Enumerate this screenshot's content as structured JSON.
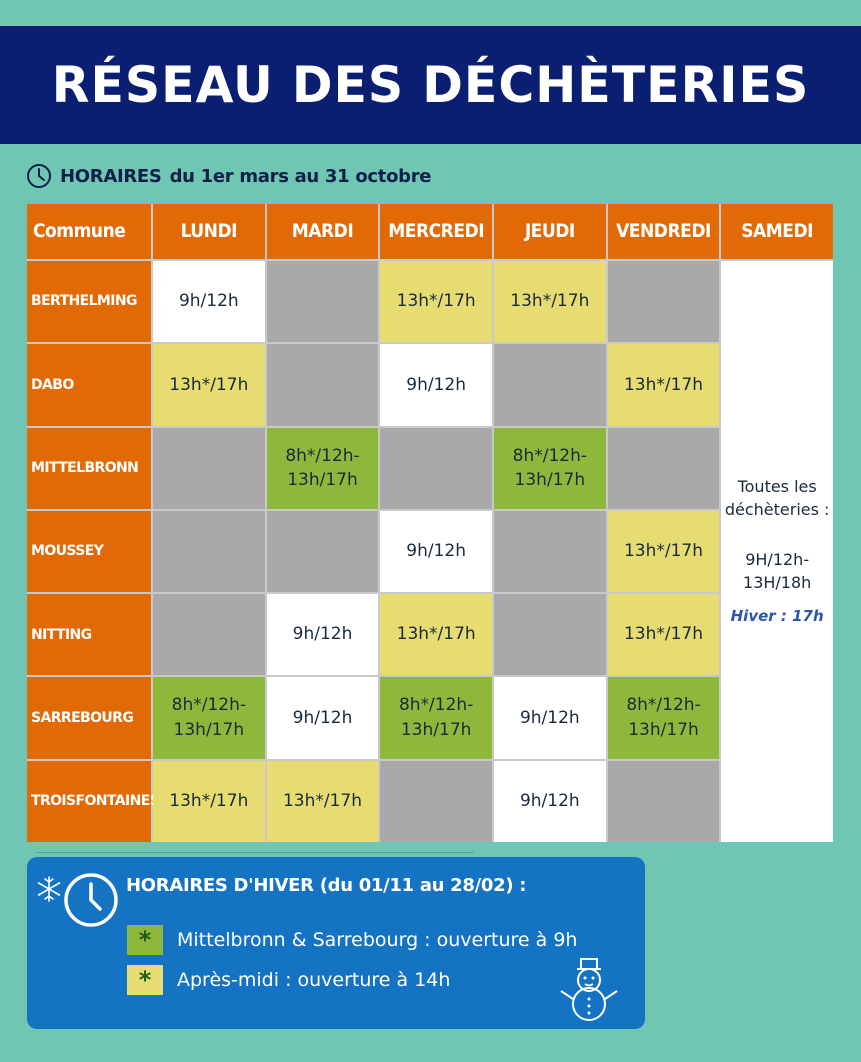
{
  "banner": {
    "title": "RÉSEAU DES DÉCHÈTERIES"
  },
  "subhead": {
    "strong": "HORAIRES",
    "rest": "du 1er mars au 31 octobre"
  },
  "table": {
    "headers": [
      "Commune",
      "LUNDI",
      "MARDI",
      "MERCREDI",
      "JEUDI",
      "VENDREDI",
      "SAMEDI"
    ],
    "rows": [
      {
        "commune": "BERTHELMING",
        "cells": [
          {
            "t": "9h/12h",
            "c": "white"
          },
          {
            "t": "",
            "c": "grey"
          },
          {
            "t": "13h*/17h",
            "c": "yellow"
          },
          {
            "t": "13h*/17h",
            "c": "yellow"
          },
          {
            "t": "",
            "c": "grey"
          }
        ]
      },
      {
        "commune": "DABO",
        "cells": [
          {
            "t": "13h*/17h",
            "c": "yellow"
          },
          {
            "t": "",
            "c": "grey"
          },
          {
            "t": "9h/12h",
            "c": "white"
          },
          {
            "t": "",
            "c": "grey"
          },
          {
            "t": "13h*/17h",
            "c": "yellow"
          }
        ]
      },
      {
        "commune": "MITTELBRONN",
        "cells": [
          {
            "t": "",
            "c": "grey"
          },
          {
            "t": "8h*/12h-",
            "t2": "13h/17h",
            "c": "green"
          },
          {
            "t": "",
            "c": "grey"
          },
          {
            "t": "8h*/12h-",
            "t2": "13h/17h",
            "c": "green"
          },
          {
            "t": "",
            "c": "grey"
          }
        ]
      },
      {
        "commune": "MOUSSEY",
        "cells": [
          {
            "t": "",
            "c": "grey"
          },
          {
            "t": "",
            "c": "grey"
          },
          {
            "t": "9h/12h",
            "c": "white"
          },
          {
            "t": "",
            "c": "grey"
          },
          {
            "t": "13h*/17h",
            "c": "yellow"
          }
        ]
      },
      {
        "commune": "NITTING",
        "cells": [
          {
            "t": "",
            "c": "grey"
          },
          {
            "t": "9h/12h",
            "c": "white"
          },
          {
            "t": "13h*/17h",
            "c": "yellow"
          },
          {
            "t": "",
            "c": "grey"
          },
          {
            "t": "13h*/17h",
            "c": "yellow"
          }
        ]
      },
      {
        "commune": "SARREBOURG",
        "cells": [
          {
            "t": "8h*/12h-",
            "t2": "13h/17h",
            "c": "green"
          },
          {
            "t": "9h/12h",
            "c": "white"
          },
          {
            "t": "8h*/12h-",
            "t2": "13h/17h",
            "c": "green"
          },
          {
            "t": "9h/12h",
            "c": "white"
          },
          {
            "t": "8h*/12h-",
            "t2": "13h/17h",
            "c": "green"
          }
        ]
      },
      {
        "commune": "TROISFONTAINES",
        "cells": [
          {
            "t": "13h*/17h",
            "c": "yellow"
          },
          {
            "t": "13h*/17h",
            "c": "yellow"
          },
          {
            "t": "",
            "c": "grey"
          },
          {
            "t": "9h/12h",
            "c": "white"
          },
          {
            "t": "",
            "c": "grey"
          }
        ]
      }
    ],
    "samedi": {
      "line1": "Toutes les",
      "line2": "déchèteries :",
      "hours1": "9H/12h-",
      "hours2": "13H/18h",
      "hiver": "Hiver : 17h"
    }
  },
  "winter": {
    "title": "HORAIRES D'HIVER (du 01/11 au 28/02) :",
    "row1": {
      "mark": "*",
      "text": "Mittelbronn & Sarrebourg : ouverture à 9h"
    },
    "row2": {
      "mark": "*",
      "text": "Après-midi : ouverture à 14h"
    }
  },
  "icons": [
    "clock-icon",
    "snowflake-icon",
    "snowman-icon"
  ],
  "colors": {
    "background": "#6fc6b3",
    "banner": "#0b1f72",
    "header": "#e26a06",
    "white": "#ffffff",
    "grey": "#a9a9a9",
    "yellow": "#e6dc72",
    "green": "#8db83b",
    "winter_box": "#1573c4"
  }
}
